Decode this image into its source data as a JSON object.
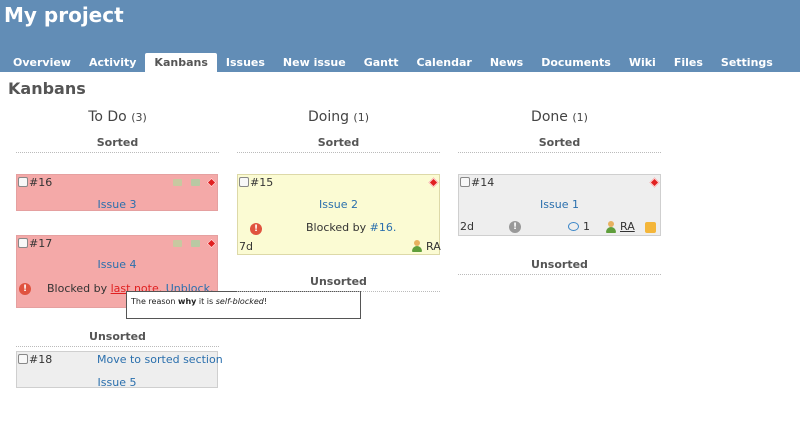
{
  "project": {
    "title": "My project"
  },
  "tabs": [
    {
      "label": "Overview",
      "active": false
    },
    {
      "label": "Activity",
      "active": false
    },
    {
      "label": "Kanbans",
      "active": true
    },
    {
      "label": "Issues",
      "active": false
    },
    {
      "label": "New issue",
      "active": false
    },
    {
      "label": "Gantt",
      "active": false
    },
    {
      "label": "Calendar",
      "active": false
    },
    {
      "label": "News",
      "active": false
    },
    {
      "label": "Documents",
      "active": false
    },
    {
      "label": "Wiki",
      "active": false
    },
    {
      "label": "Files",
      "active": false
    },
    {
      "label": "Settings",
      "active": false
    }
  ],
  "page": {
    "heading": "Kanbans"
  },
  "columns": [
    {
      "title": "To Do",
      "count": "(3)",
      "sorted_label": "Sorted",
      "unsorted_label": "Unsorted",
      "cards": [
        {
          "number": "#16",
          "subject": "Issue 3",
          "color": "#f4a9a8"
        },
        {
          "number": "#17",
          "subject": "Issue 4",
          "blocked_prefix": "Blocked by",
          "blocked_link": "last note",
          "unblock": "Unblock.",
          "color": "#f4a9a8"
        },
        {
          "number": "#18",
          "move_link": "Move to sorted section",
          "subject": "Issue 5",
          "color": "#eeeeee"
        }
      ]
    },
    {
      "title": "Doing",
      "count": "(1)",
      "sorted_label": "Sorted",
      "unsorted_label": "Unsorted",
      "cards": [
        {
          "number": "#15",
          "subject": "Issue 2",
          "blocked_prefix": "Blocked by",
          "blocked_link": "#16.",
          "estimate": "7d",
          "assignee": "RA",
          "color": "#fbfbd3"
        }
      ]
    },
    {
      "title": "Done",
      "count": "(1)",
      "sorted_label": "Sorted",
      "unsorted_label": "Unsorted",
      "cards": [
        {
          "number": "#14",
          "subject": "Issue 1",
          "estimate": "2d",
          "comments": "1",
          "assignee": "RA",
          "color": "#eeeeee"
        }
      ]
    }
  ],
  "tooltip": {
    "prefix": "The reason ",
    "bold": "why",
    "middle": " it is ",
    "italic": "self-blocked",
    "suffix": "!"
  },
  "icons": [
    "priority-high-icon",
    "user-icon",
    "comment-icon",
    "warning-icon",
    "feed-icon",
    "clock-icon",
    "note-icon"
  ],
  "colors": {
    "header": "#628db6",
    "link": "#2a6fad",
    "blocked_red": "#e02020"
  }
}
